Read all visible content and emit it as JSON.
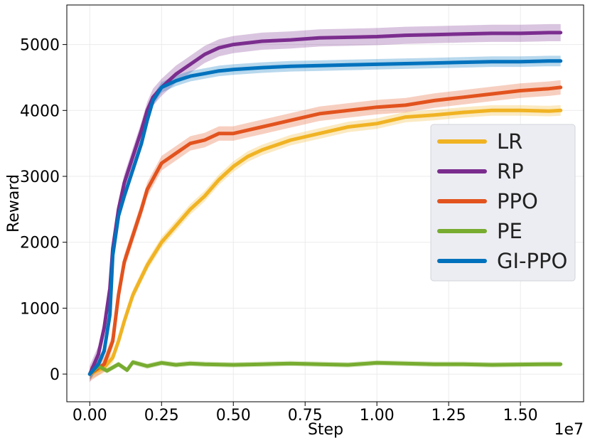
{
  "chart_data": {
    "type": "line",
    "title": "",
    "xlabel": "Step",
    "ylabel": "Reward",
    "x_offset_label": "1e7",
    "xlim": [
      -0.08,
      1.72
    ],
    "ylim": [
      -420,
      5600
    ],
    "x_ticks": [
      0.0,
      0.25,
      0.5,
      0.75,
      1.0,
      1.25,
      1.5
    ],
    "x_tick_labels": [
      "0.00",
      "0.25",
      "0.50",
      "0.75",
      "1.00",
      "1.25",
      "1.50"
    ],
    "y_ticks": [
      0,
      1000,
      2000,
      3000,
      4000,
      5000
    ],
    "y_tick_labels": [
      "0",
      "1000",
      "2000",
      "3000",
      "4000",
      "5000"
    ],
    "grid": true,
    "legend_position": "center-right",
    "series": [
      {
        "name": "LR",
        "color": "#F0B323",
        "x": [
          0.0,
          0.05,
          0.08,
          0.1,
          0.12,
          0.15,
          0.2,
          0.25,
          0.3,
          0.35,
          0.4,
          0.45,
          0.5,
          0.55,
          0.6,
          0.7,
          0.8,
          0.9,
          1.0,
          1.1,
          1.2,
          1.3,
          1.4,
          1.5,
          1.6,
          1.64
        ],
        "y": [
          0,
          100,
          250,
          500,
          800,
          1200,
          1650,
          2000,
          2250,
          2500,
          2700,
          2950,
          3150,
          3300,
          3400,
          3550,
          3650,
          3750,
          3800,
          3900,
          3930,
          3970,
          4000,
          4000,
          3990,
          4000
        ],
        "band": 80
      },
      {
        "name": "RP",
        "color": "#7B2D8E",
        "x": [
          0.0,
          0.03,
          0.05,
          0.07,
          0.08,
          0.1,
          0.12,
          0.15,
          0.18,
          0.2,
          0.22,
          0.25,
          0.3,
          0.35,
          0.4,
          0.45,
          0.5,
          0.6,
          0.7,
          0.8,
          0.9,
          1.0,
          1.1,
          1.2,
          1.3,
          1.4,
          1.5,
          1.6,
          1.64
        ],
        "y": [
          0,
          300,
          700,
          1300,
          1900,
          2500,
          2900,
          3300,
          3700,
          4000,
          4200,
          4350,
          4550,
          4700,
          4850,
          4950,
          5000,
          5050,
          5070,
          5100,
          5110,
          5120,
          5140,
          5150,
          5160,
          5170,
          5170,
          5180,
          5180
        ],
        "band": 130
      },
      {
        "name": "PPO",
        "color": "#E2531E",
        "x": [
          0.0,
          0.05,
          0.08,
          0.1,
          0.12,
          0.15,
          0.18,
          0.2,
          0.25,
          0.3,
          0.35,
          0.4,
          0.45,
          0.5,
          0.55,
          0.6,
          0.7,
          0.8,
          0.9,
          1.0,
          1.1,
          1.2,
          1.3,
          1.4,
          1.5,
          1.6,
          1.64
        ],
        "y": [
          0,
          150,
          500,
          1200,
          1700,
          2100,
          2500,
          2800,
          3200,
          3350,
          3500,
          3550,
          3650,
          3650,
          3700,
          3750,
          3850,
          3950,
          4000,
          4050,
          4080,
          4150,
          4200,
          4250,
          4300,
          4330,
          4350
        ],
        "band": 110
      },
      {
        "name": "PE",
        "color": "#77AC30",
        "x": [
          0.0,
          0.03,
          0.06,
          0.1,
          0.13,
          0.15,
          0.2,
          0.25,
          0.3,
          0.35,
          0.4,
          0.5,
          0.6,
          0.7,
          0.8,
          0.9,
          1.0,
          1.1,
          1.2,
          1.3,
          1.4,
          1.5,
          1.6,
          1.64
        ],
        "y": [
          0,
          120,
          50,
          150,
          60,
          180,
          120,
          170,
          140,
          160,
          150,
          140,
          150,
          160,
          150,
          140,
          170,
          160,
          150,
          150,
          140,
          145,
          150,
          150
        ],
        "band": 40
      },
      {
        "name": "GI-PPO",
        "color": "#0072BD",
        "x": [
          0.0,
          0.03,
          0.05,
          0.07,
          0.08,
          0.1,
          0.12,
          0.15,
          0.18,
          0.2,
          0.22,
          0.25,
          0.3,
          0.35,
          0.4,
          0.45,
          0.5,
          0.6,
          0.7,
          0.8,
          0.9,
          1.0,
          1.1,
          1.2,
          1.3,
          1.4,
          1.5,
          1.6,
          1.64
        ],
        "y": [
          0,
          150,
          350,
          900,
          1800,
          2400,
          2700,
          3100,
          3500,
          3850,
          4150,
          4350,
          4450,
          4520,
          4560,
          4600,
          4620,
          4650,
          4670,
          4680,
          4690,
          4700,
          4710,
          4720,
          4730,
          4740,
          4740,
          4750,
          4750
        ],
        "band": 80
      }
    ]
  }
}
